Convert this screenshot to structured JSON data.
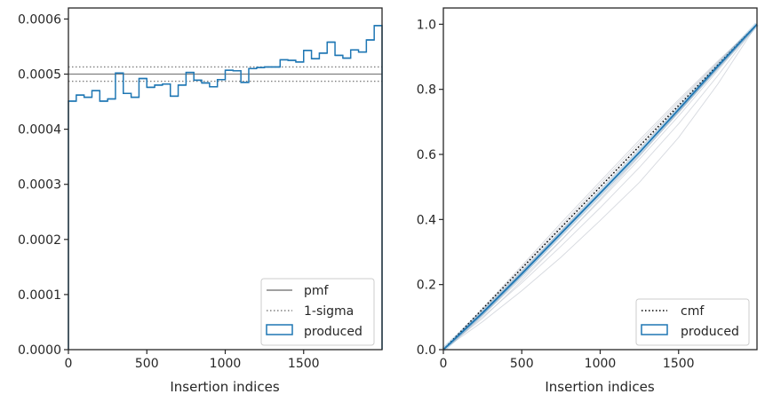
{
  "chart_data": [
    {
      "type": "step",
      "xlabel": "Insertion indices",
      "ylabel": "",
      "xlim": [
        0,
        2000
      ],
      "ylim": [
        0,
        0.00062
      ],
      "xticks": [
        0,
        500,
        1000,
        1500
      ],
      "xtick_labels": [
        "0",
        "500",
        "1000",
        "1500"
      ],
      "yticks": [
        0,
        0.0001,
        0.0002,
        0.0003,
        0.0004,
        0.0005,
        0.0006
      ],
      "ytick_labels": [
        "0.0000",
        "0.0001",
        "0.0002",
        "0.0003",
        "0.0004",
        "0.0005",
        "0.0006"
      ],
      "grid": false,
      "legend_position": "lower right",
      "pmf": {
        "name": "pmf",
        "value": 0.0005,
        "color": "#808080"
      },
      "sigma": {
        "name": "1-sigma",
        "values": [
          0.000487,
          0.000513
        ],
        "color": "#808080"
      },
      "histogram": {
        "name": "produced",
        "color": "#1f77b4",
        "bin_edges": [
          0,
          50,
          100,
          150,
          200,
          250,
          300,
          350,
          400,
          450,
          500,
          550,
          600,
          650,
          700,
          750,
          800,
          850,
          900,
          950,
          1000,
          1050,
          1100,
          1150,
          1200,
          1250,
          1300,
          1350,
          1400,
          1450,
          1500,
          1550,
          1600,
          1650,
          1700,
          1750,
          1800,
          1850,
          1900,
          1950,
          2000
        ],
        "values": [
          0.000451,
          0.000462,
          0.000458,
          0.00047,
          0.000451,
          0.000455,
          0.000502,
          0.000465,
          0.000458,
          0.000492,
          0.000476,
          0.00048,
          0.000482,
          0.00046,
          0.00048,
          0.000503,
          0.000489,
          0.000484,
          0.000477,
          0.00049,
          0.000507,
          0.000506,
          0.000485,
          0.00051,
          0.000512,
          0.000513,
          0.000513,
          0.000526,
          0.000525,
          0.000522,
          0.000543,
          0.000528,
          0.000538,
          0.000558,
          0.000534,
          0.000529,
          0.000544,
          0.00054,
          0.000562,
          0.000588
        ]
      }
    },
    {
      "type": "line",
      "xlabel": "Insertion indices",
      "ylabel": "",
      "xlim": [
        0,
        2000
      ],
      "ylim": [
        0,
        1.05
      ],
      "xticks": [
        0,
        500,
        1000,
        1500
      ],
      "xtick_labels": [
        "0",
        "500",
        "1000",
        "1500"
      ],
      "yticks": [
        0,
        0.2,
        0.4,
        0.6,
        0.8,
        1.0
      ],
      "ytick_labels": [
        "0.0",
        "0.2",
        "0.4",
        "0.6",
        "0.8",
        "1.0"
      ],
      "grid": false,
      "legend_position": "lower right",
      "cmf": {
        "name": "cmf",
        "x": [
          0,
          2000
        ],
        "y": [
          0,
          1
        ],
        "color": "#000000"
      },
      "produced": {
        "name": "produced",
        "color": "#1f77b4",
        "x": [
          0,
          250,
          500,
          750,
          1000,
          1250,
          1500,
          1750,
          2000
        ],
        "y": [
          0,
          0.113,
          0.233,
          0.357,
          0.481,
          0.606,
          0.738,
          0.871,
          1.0
        ]
      },
      "runs": {
        "color": "#c8ccd4",
        "x": [
          0,
          250,
          500,
          750,
          1000,
          1250,
          1500,
          1750,
          2000
        ],
        "y": [
          [
            0,
            0.086,
            0.181,
            0.284,
            0.397,
            0.514,
            0.652,
            0.816,
            1.0
          ],
          [
            0,
            0.1,
            0.205,
            0.318,
            0.436,
            0.56,
            0.694,
            0.842,
            1.0
          ],
          [
            0,
            0.106,
            0.219,
            0.336,
            0.458,
            0.585,
            0.718,
            0.858,
            1.0
          ],
          [
            0,
            0.109,
            0.226,
            0.347,
            0.47,
            0.596,
            0.728,
            0.864,
            1.0
          ],
          [
            0,
            0.116,
            0.24,
            0.366,
            0.492,
            0.617,
            0.746,
            0.876,
            1.0
          ],
          [
            0,
            0.119,
            0.246,
            0.374,
            0.501,
            0.628,
            0.756,
            0.882,
            1.0
          ],
          [
            0,
            0.123,
            0.252,
            0.381,
            0.509,
            0.636,
            0.762,
            0.884,
            1.0
          ],
          [
            0,
            0.127,
            0.258,
            0.389,
            0.517,
            0.644,
            0.768,
            0.887,
            1.0
          ],
          [
            0,
            0.112,
            0.238,
            0.362,
            0.484,
            0.606,
            0.733,
            0.866,
            1.0
          ],
          [
            0,
            0.096,
            0.212,
            0.335,
            0.462,
            0.594,
            0.731,
            0.866,
            1.0
          ]
        ]
      }
    }
  ]
}
